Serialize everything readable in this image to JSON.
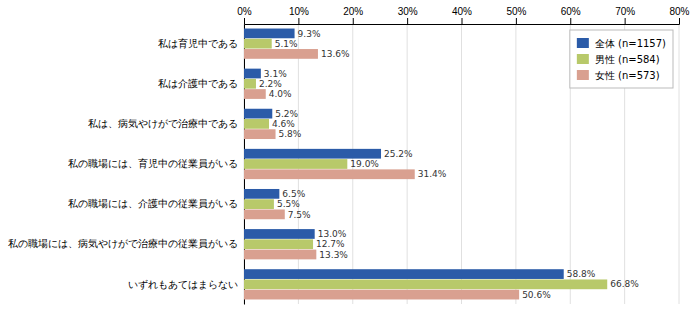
{
  "chart_data": {
    "type": "bar",
    "orientation": "horizontal",
    "categories": [
      "私は育児中である",
      "私は介護中である",
      "私は、病気やけがで治療中である",
      "私の職場には、育児中の従業員がいる",
      "私の職場には、介護中の従業員がいる",
      "私の職場には、病気やけがで治療中の従業員がいる",
      "いずれもあてはまらない"
    ],
    "series": [
      {
        "name": "全体 (n=1157)",
        "color": "#2B5BA8",
        "values": [
          9.3,
          3.1,
          5.2,
          25.2,
          6.5,
          13.0,
          58.8
        ],
        "value_labels": [
          "9.3%",
          "3.1%",
          "5.2%",
          "25.2%",
          "6.5%",
          "13.0%",
          "58.8%"
        ]
      },
      {
        "name": "男性 (n=584)",
        "color": "#B8C96A",
        "values": [
          5.1,
          2.2,
          4.6,
          19.0,
          5.5,
          12.7,
          66.8
        ],
        "value_labels": [
          "5.1%",
          "2.2%",
          "4.6%",
          "19.0%",
          "5.5%",
          "12.7%",
          "66.8%"
        ]
      },
      {
        "name": "女性 (n=573)",
        "color": "#D9A090",
        "values": [
          13.6,
          4.0,
          5.8,
          31.4,
          7.5,
          13.3,
          50.6
        ],
        "value_labels": [
          "13.6%",
          "4.0%",
          "5.8%",
          "31.4%",
          "7.5%",
          "13.3%",
          "50.6%"
        ]
      }
    ],
    "xlim": [
      0,
      80
    ],
    "xticks": [
      {
        "value": 0,
        "label": "0%"
      },
      {
        "value": 10,
        "label": "10%"
      },
      {
        "value": 20,
        "label": "20%"
      },
      {
        "value": 30,
        "label": "30%"
      },
      {
        "value": 40,
        "label": "40%"
      },
      {
        "value": 50,
        "label": "50%"
      },
      {
        "value": 60,
        "label": "60%"
      },
      {
        "value": 70,
        "label": "70%"
      },
      {
        "value": 80,
        "label": "80%"
      }
    ],
    "grid": true,
    "legend": "top-right",
    "data_labels": true
  }
}
